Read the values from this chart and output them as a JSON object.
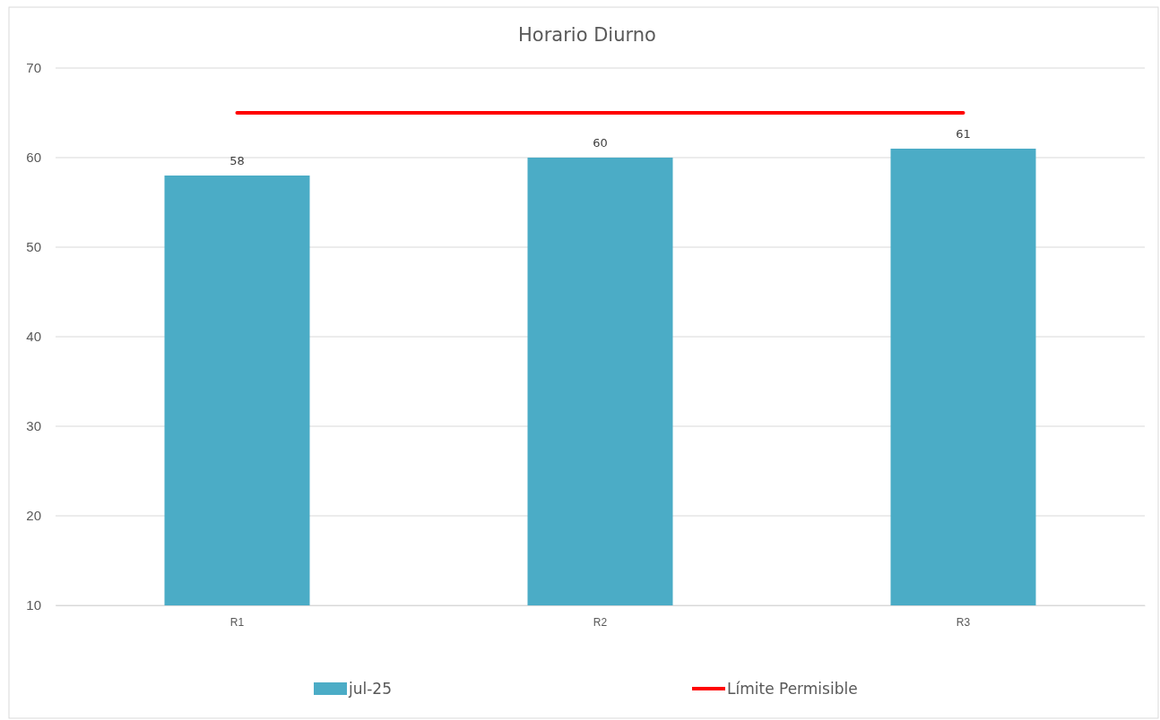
{
  "chart_data": {
    "type": "bar",
    "title": "Horario Diurno",
    "categories": [
      "R1",
      "R2",
      "R3"
    ],
    "series": [
      {
        "name": "jul-25",
        "color": "#4bacc6",
        "values": [
          58,
          60,
          61
        ],
        "value_labels": [
          "58",
          "60",
          "61"
        ]
      },
      {
        "name": "Límite Permisible",
        "type": "line",
        "color": "#ff0000",
        "values": [
          65,
          65,
          65
        ]
      }
    ],
    "ylim": [
      10,
      70
    ],
    "yticks": [
      10,
      20,
      30,
      40,
      50,
      60,
      70
    ],
    "grid": "y",
    "legend": "bottom",
    "marker": "none"
  }
}
